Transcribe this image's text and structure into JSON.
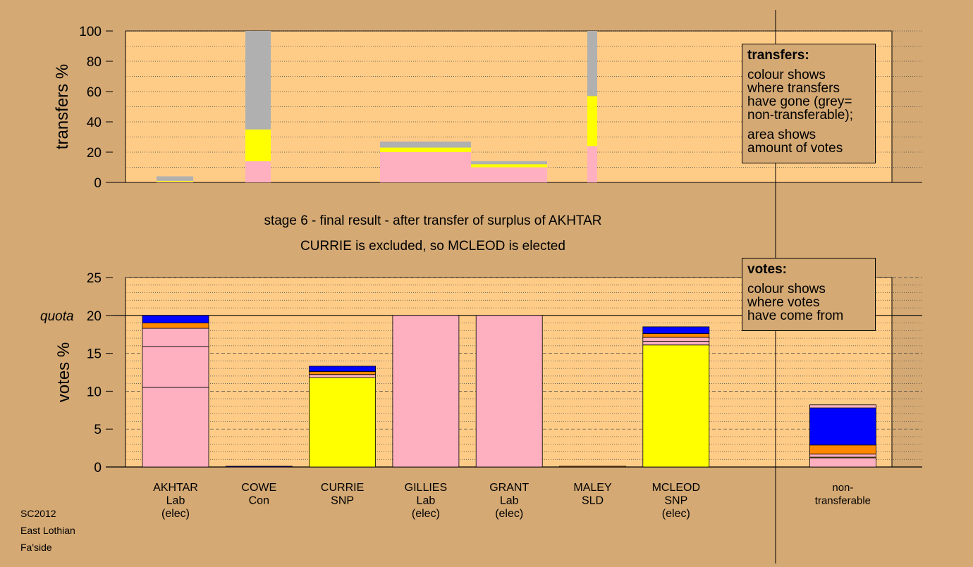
{
  "caption": {
    "line1": "stage 6 - final result - after transfer of surplus of AKHTAR",
    "line2": "CURRIE is excluded, so MCLEOD is elected"
  },
  "footer": [
    "SC2012",
    "East Lothian",
    "Fa'side"
  ],
  "legend_transfers": {
    "title": "transfers:",
    "lines_a": [
      "colour shows",
      "where transfers",
      "have gone (grey=",
      "non-transferable);"
    ],
    "lines_b": [
      "area shows",
      "amount of votes"
    ]
  },
  "legend_votes": {
    "title": "votes:",
    "lines": [
      "colour shows",
      "where votes",
      "have come from"
    ]
  },
  "colors": {
    "background": "#d4a974",
    "plot_bg": "#ffcc88",
    "Lab": "#ffb0c0",
    "SNP": "#ffff00",
    "Con": "#0000ff",
    "SLD": "#ff8800",
    "nontransferable": "#b0b0b0"
  },
  "chart_data": [
    {
      "type": "bar",
      "stacked": true,
      "variable_width": true,
      "title": "",
      "ylabel": "transfers %",
      "ylim": [
        0,
        100
      ],
      "yticks": [
        0,
        20,
        40,
        60,
        80,
        100
      ],
      "grid": "dotted",
      "description_of_widths": "bar width is proportional to the number of votes transferred",
      "bars": [
        {
          "candidate": "AKHTAR",
          "segments": [
            {
              "party": "Lab",
              "value": 0.5
            },
            {
              "party": "SNP",
              "value": 0.5
            },
            {
              "party": "nontransferable",
              "value": 3
            }
          ]
        },
        {
          "candidate": "COWE",
          "segments": [
            {
              "party": "Lab",
              "value": 14
            },
            {
              "party": "SNP",
              "value": 21
            },
            {
              "party": "nontransferable",
              "value": 65
            }
          ]
        },
        {
          "candidate": "GILLIES",
          "segments": [
            {
              "party": "Lab",
              "value": 20
            },
            {
              "party": "SNP",
              "value": 3
            },
            {
              "party": "nontransferable",
              "value": 4
            }
          ]
        },
        {
          "candidate": "GRANT",
          "segments": [
            {
              "party": "Lab",
              "value": 10
            },
            {
              "party": "SNP",
              "value": 2
            },
            {
              "party": "nontransferable",
              "value": 2
            }
          ]
        },
        {
          "candidate": "MALEY",
          "segments": [
            {
              "party": "Lab",
              "value": 24
            },
            {
              "party": "SNP",
              "value": 33
            },
            {
              "party": "nontransferable",
              "value": 43
            }
          ]
        }
      ]
    },
    {
      "type": "bar",
      "stacked": true,
      "title": "",
      "ylabel": "votes %",
      "ylim": [
        0,
        25
      ],
      "yticks": [
        0,
        5,
        10,
        15,
        20,
        25
      ],
      "quota": {
        "label": "quota",
        "value": 20
      },
      "categories": [
        "AKHTAR",
        "COWE",
        "CURRIE",
        "GILLIES",
        "GRANT",
        "MALEY",
        "MCLEOD",
        "",
        "non-transferable"
      ],
      "category_labels": [
        [
          "AKHTAR",
          "Lab",
          "(elec)"
        ],
        [
          "COWE",
          "Con"
        ],
        [
          "CURRIE",
          "SNP"
        ],
        [
          "GILLIES",
          "Lab",
          "(elec)"
        ],
        [
          "GRANT",
          "Lab",
          "(elec)"
        ],
        [
          "MALEY",
          "SLD"
        ],
        [
          "MCLEOD",
          "SNP",
          "(elec)"
        ],
        [],
        [
          "non-",
          "transferable"
        ]
      ],
      "bars": [
        {
          "candidate": "AKHTAR",
          "segments": [
            {
              "party": "Lab",
              "value": 10.5
            },
            {
              "party": "Lab",
              "value": 5.4
            },
            {
              "party": "Lab",
              "value": 2.4
            },
            {
              "party": "SLD",
              "value": 0.7
            },
            {
              "party": "Con",
              "value": 1.0
            }
          ]
        },
        {
          "candidate": "COWE",
          "segments": [
            {
              "party": "Con",
              "value": 0.1
            }
          ]
        },
        {
          "candidate": "CURRIE",
          "segments": [
            {
              "party": "SNP",
              "value": 11.8
            },
            {
              "party": "Lab",
              "value": 0.4
            },
            {
              "party": "SLD",
              "value": 0.4
            },
            {
              "party": "Con",
              "value": 0.7
            }
          ]
        },
        {
          "candidate": "GILLIES",
          "segments": [
            {
              "party": "Lab",
              "value": 20
            }
          ]
        },
        {
          "candidate": "GRANT",
          "segments": [
            {
              "party": "Lab",
              "value": 20
            }
          ]
        },
        {
          "candidate": "MALEY",
          "segments": [
            {
              "party": "SLD",
              "value": 0.1
            }
          ]
        },
        {
          "candidate": "MCLEOD",
          "segments": [
            {
              "party": "SNP",
              "value": 16.1
            },
            {
              "party": "Lab",
              "value": 0.5
            },
            {
              "party": "Lab",
              "value": 0.5
            },
            {
              "party": "SLD",
              "value": 0.5
            },
            {
              "party": "Con",
              "value": 0.9
            }
          ]
        },
        {
          "candidate": "",
          "segments": []
        },
        {
          "candidate": "non-transferable",
          "segments": [
            {
              "party": "Lab",
              "value": 1.2
            },
            {
              "party": "SNP",
              "value": 0.1
            },
            {
              "party": "Lab",
              "value": 0.4
            },
            {
              "party": "SLD",
              "value": 1.2
            },
            {
              "party": "Con",
              "value": 4.9
            },
            {
              "party": "Lab",
              "value": 0.4
            }
          ]
        }
      ]
    }
  ]
}
